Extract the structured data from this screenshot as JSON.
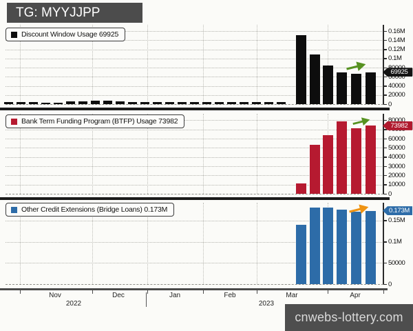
{
  "header": {
    "tag_label": "TG: MYYJJPP"
  },
  "watermark": {
    "text": "cnwebs-lottery.com"
  },
  "colors": {
    "background": "#fbfbf8",
    "discount_window": "#0d0d0d",
    "btfp": "#b61a30",
    "bridge_loans": "#2d6ca8",
    "green_arrow": "#579221",
    "orange_arrow": "#ef9414",
    "tag_black": "#141414",
    "tag_red": "#b01a2e",
    "tag_blue": "#2d6ca8"
  },
  "xaxis": {
    "months": [
      {
        "label": "Nov",
        "x": 80
      },
      {
        "label": "Dec",
        "x": 172
      },
      {
        "label": "Jan",
        "x": 254
      },
      {
        "label": "Feb",
        "x": 334
      },
      {
        "label": "Mar",
        "x": 424
      },
      {
        "label": "Apr",
        "x": 516
      }
    ],
    "years": [
      {
        "label": "2022",
        "x": 107
      },
      {
        "label": "2023",
        "x": 387
      }
    ],
    "boundaries": [
      29,
      134,
      214,
      295,
      373,
      476
    ],
    "year_separator_x": 212
  },
  "chart_data": [
    {
      "type": "bar",
      "name": "discount-window-usage",
      "legend": "Discount Window Usage 69925",
      "bar_color": "#0d0d0d",
      "last_value": 69925,
      "tag": {
        "label": "69925",
        "bg": "#141414",
        "side_marker": true
      },
      "arrow": {
        "icon": "up-right-arrow-icon",
        "color": "#579221"
      },
      "ylim": [
        0,
        174000
      ],
      "yticks": [
        {
          "v": 0,
          "label": "0"
        },
        {
          "v": 20000,
          "label": "20000"
        },
        {
          "v": 40000,
          "label": "40000"
        },
        {
          "v": 60000,
          "label": "60000"
        },
        {
          "v": 80000,
          "label": "80000"
        },
        {
          "v": 100000,
          "label": "0.1M"
        },
        {
          "v": 120000,
          "label": "0.12M"
        },
        {
          "v": 140000,
          "label": "0.14M"
        },
        {
          "v": 160000,
          "label": "0.16M"
        }
      ],
      "bars": [
        {
          "x": 12,
          "v": 4500,
          "w": 13
        },
        {
          "x": 30,
          "v": 4700,
          "w": 13
        },
        {
          "x": 48,
          "v": 3800,
          "w": 13
        },
        {
          "x": 66,
          "v": 3000,
          "w": 13
        },
        {
          "x": 84,
          "v": 3200,
          "w": 13
        },
        {
          "x": 102,
          "v": 6000,
          "w": 13
        },
        {
          "x": 120,
          "v": 6200,
          "w": 13
        },
        {
          "x": 138,
          "v": 7600,
          "w": 13
        },
        {
          "x": 156,
          "v": 8300,
          "w": 13
        },
        {
          "x": 174,
          "v": 5300,
          "w": 13
        },
        {
          "x": 192,
          "v": 4700,
          "w": 13
        },
        {
          "x": 210,
          "v": 4500,
          "w": 13
        },
        {
          "x": 228,
          "v": 3800,
          "w": 13
        },
        {
          "x": 246,
          "v": 3900,
          "w": 13
        },
        {
          "x": 264,
          "v": 4400,
          "w": 13
        },
        {
          "x": 282,
          "v": 4600,
          "w": 13
        },
        {
          "x": 300,
          "v": 4500,
          "w": 13
        },
        {
          "x": 318,
          "v": 4300,
          "w": 13
        },
        {
          "x": 336,
          "v": 3900,
          "w": 13
        },
        {
          "x": 354,
          "v": 4400,
          "w": 13
        },
        {
          "x": 372,
          "v": 4600,
          "w": 13
        },
        {
          "x": 390,
          "v": 3800,
          "w": 13
        },
        {
          "x": 408,
          "v": 4500,
          "w": 13
        },
        {
          "x": 437,
          "v": 152000,
          "w": 15
        },
        {
          "x": 457,
          "v": 109000,
          "w": 15
        },
        {
          "x": 476,
          "v": 85000,
          "w": 15
        },
        {
          "x": 496,
          "v": 69500,
          "w": 15
        },
        {
          "x": 517,
          "v": 66000,
          "w": 15
        },
        {
          "x": 538,
          "v": 69925,
          "w": 15
        }
      ]
    },
    {
      "type": "bar",
      "name": "btfp-usage",
      "legend": "Bank Term Funding Program (BTFP) Usage 73982",
      "bar_color": "#b61a30",
      "last_value": 73982,
      "tag": {
        "label": "73982",
        "bg": "#b01a2e",
        "side_marker": true
      },
      "arrow": {
        "icon": "up-right-arrow-icon",
        "color": "#579221"
      },
      "ylim": [
        0,
        87000
      ],
      "yticks": [
        {
          "v": 0,
          "label": "0"
        },
        {
          "v": 10000,
          "label": "10000"
        },
        {
          "v": 20000,
          "label": "20000"
        },
        {
          "v": 30000,
          "label": "30000"
        },
        {
          "v": 40000,
          "label": "40000"
        },
        {
          "v": 50000,
          "label": "50000"
        },
        {
          "v": 60000,
          "label": "60000"
        },
        {
          "v": 70000,
          "label": "70000"
        },
        {
          "v": 80000,
          "label": "80000"
        }
      ],
      "bars": [
        {
          "x": 437,
          "v": 11500,
          "w": 15
        },
        {
          "x": 457,
          "v": 53500,
          "w": 15
        },
        {
          "x": 476,
          "v": 64000,
          "w": 15
        },
        {
          "x": 496,
          "v": 78500,
          "w": 15
        },
        {
          "x": 517,
          "v": 71500,
          "w": 15
        },
        {
          "x": 538,
          "v": 73982,
          "w": 15
        }
      ]
    },
    {
      "type": "bar",
      "name": "other-credit-extensions",
      "legend": "Other Credit Extensions (Bridge Loans) 0.173M",
      "bar_color": "#2d6ca8",
      "last_value": 173000,
      "tag": {
        "label": "0.173M",
        "bg": "#2d6ca8",
        "side_marker": false
      },
      "arrow": {
        "icon": "up-right-arrow-icon",
        "color": "#ef9414"
      },
      "ylim": [
        0,
        192000
      ],
      "yticks": [
        {
          "v": 0,
          "label": "0"
        },
        {
          "v": 50000,
          "label": "50000"
        },
        {
          "v": 100000,
          "label": "0.1M"
        },
        {
          "v": 150000,
          "label": "0.15M"
        }
      ],
      "bars": [
        {
          "x": 437,
          "v": 140000,
          "w": 15
        },
        {
          "x": 457,
          "v": 180000,
          "w": 15
        },
        {
          "x": 476,
          "v": 180000,
          "w": 15
        },
        {
          "x": 496,
          "v": 176000,
          "w": 15
        },
        {
          "x": 517,
          "v": 171000,
          "w": 15
        },
        {
          "x": 538,
          "v": 173000,
          "w": 15
        }
      ]
    }
  ]
}
